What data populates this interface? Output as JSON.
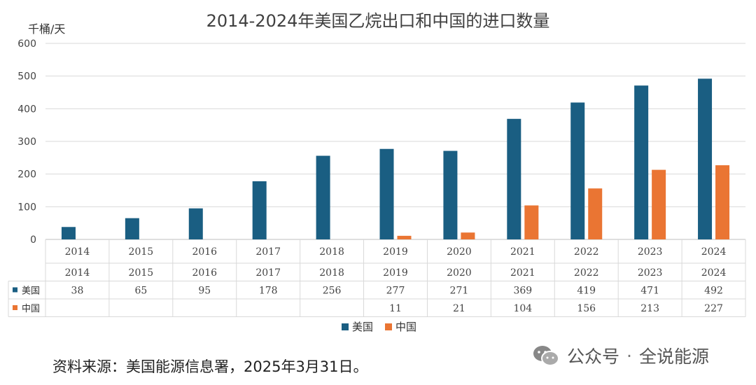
{
  "chart_data": {
    "type": "bar",
    "title": "2014-2024年美国乙烷出口和中国的进口数量",
    "ylabel": "千桶/天",
    "xlabel": "",
    "ylim": [
      0,
      600
    ],
    "yticks": [
      0,
      100,
      200,
      300,
      400,
      500,
      600
    ],
    "grid": true,
    "legend_position": "bottom",
    "categories": [
      "2014",
      "2015",
      "2016",
      "2017",
      "2018",
      "2019",
      "2020",
      "2021",
      "2022",
      "2023",
      "2024"
    ],
    "series": [
      {
        "name": "美国",
        "color": "#1a5e82",
        "values": [
          38,
          65,
          95,
          178,
          256,
          277,
          271,
          369,
          419,
          471,
          492
        ],
        "table_values": [
          "38",
          "65",
          "95",
          "178",
          "256",
          "277",
          "271",
          "369",
          "419",
          "471",
          "492"
        ]
      },
      {
        "name": "中国",
        "color": "#ea7533",
        "values": [
          0,
          0,
          0,
          0,
          0,
          11,
          21,
          104,
          156,
          213,
          227
        ],
        "table_values": [
          "",
          "",
          "",
          "",
          "",
          "11",
          "21",
          "104",
          "156",
          "213",
          "227"
        ]
      }
    ]
  },
  "source_note": "资料来源：美国能源信息署，2025年3月31日。",
  "watermark": {
    "icon": "wechat-icon",
    "label": "公众号",
    "separator": "·",
    "account": "全说能源"
  }
}
